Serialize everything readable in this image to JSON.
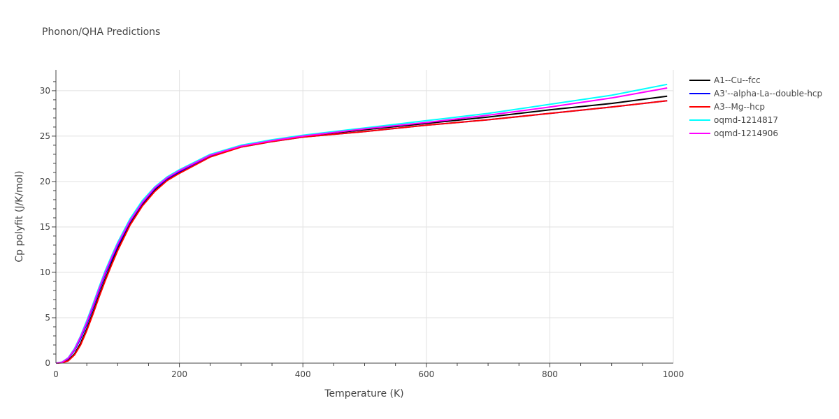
{
  "chart_data": {
    "type": "line",
    "title": "Phonon/QHA Predictions",
    "xlabel": "Temperature (K)",
    "ylabel": "Cp polyfit (J/K/mol)",
    "xlim": [
      0,
      1000
    ],
    "ylim": [
      0,
      32.3
    ],
    "x_ticks": [
      0,
      200,
      400,
      600,
      800,
      1000
    ],
    "x_tick_labels": [
      "0",
      "200",
      "400",
      "600",
      "800",
      "1000"
    ],
    "y_ticks": [
      0,
      5,
      10,
      15,
      20,
      25,
      30
    ],
    "y_tick_labels": [
      "0",
      "5",
      "10",
      "15",
      "20",
      "25",
      "30"
    ],
    "grid": true,
    "legend_position": "right",
    "x": [
      0,
      10,
      20,
      30,
      40,
      50,
      60,
      70,
      80,
      90,
      100,
      120,
      140,
      160,
      180,
      200,
      250,
      300,
      350,
      400,
      500,
      600,
      700,
      800,
      900,
      990
    ],
    "series": [
      {
        "name": "A1--Cu--fcc",
        "color": "#000000",
        "values": [
          0,
          0.05,
          0.3,
          1.0,
          2.2,
          3.8,
          5.6,
          7.5,
          9.3,
          11.0,
          12.6,
          15.3,
          17.4,
          19.0,
          20.2,
          21.0,
          22.8,
          23.9,
          24.5,
          25.0,
          25.7,
          26.4,
          27.1,
          27.9,
          28.6,
          29.4
        ]
      },
      {
        "name": "A3'--alpha-La--double-hcp",
        "color": "#0000ff",
        "values": [
          0,
          0.1,
          0.5,
          1.4,
          2.7,
          4.3,
          6.1,
          8.0,
          9.8,
          11.4,
          12.9,
          15.6,
          17.6,
          19.2,
          20.3,
          21.1,
          22.8,
          23.8,
          24.4,
          24.9,
          25.5,
          26.2,
          26.8,
          27.5,
          28.2,
          28.9
        ]
      },
      {
        "name": "A3--Mg--hcp",
        "color": "#ff0000",
        "values": [
          0,
          0.04,
          0.25,
          0.9,
          2.0,
          3.6,
          5.4,
          7.3,
          9.1,
          10.8,
          12.4,
          15.2,
          17.3,
          18.9,
          20.1,
          20.9,
          22.7,
          23.8,
          24.4,
          24.9,
          25.5,
          26.2,
          26.8,
          27.5,
          28.2,
          28.9
        ]
      },
      {
        "name": "oqmd-1214817",
        "color": "#00ffff",
        "values": [
          0,
          0.12,
          0.6,
          1.6,
          3.0,
          4.7,
          6.5,
          8.4,
          10.2,
          11.8,
          13.3,
          15.9,
          17.9,
          19.4,
          20.5,
          21.3,
          23.0,
          24.0,
          24.6,
          25.1,
          25.9,
          26.7,
          27.5,
          28.5,
          29.5,
          30.7
        ]
      },
      {
        "name": "oqmd-1214906",
        "color": "#ff00ff",
        "values": [
          0,
          0.1,
          0.55,
          1.5,
          2.9,
          4.5,
          6.3,
          8.2,
          10.0,
          11.6,
          13.1,
          15.7,
          17.7,
          19.3,
          20.4,
          21.2,
          22.9,
          23.9,
          24.5,
          25.0,
          25.8,
          26.5,
          27.3,
          28.2,
          29.2,
          30.3
        ]
      }
    ]
  }
}
